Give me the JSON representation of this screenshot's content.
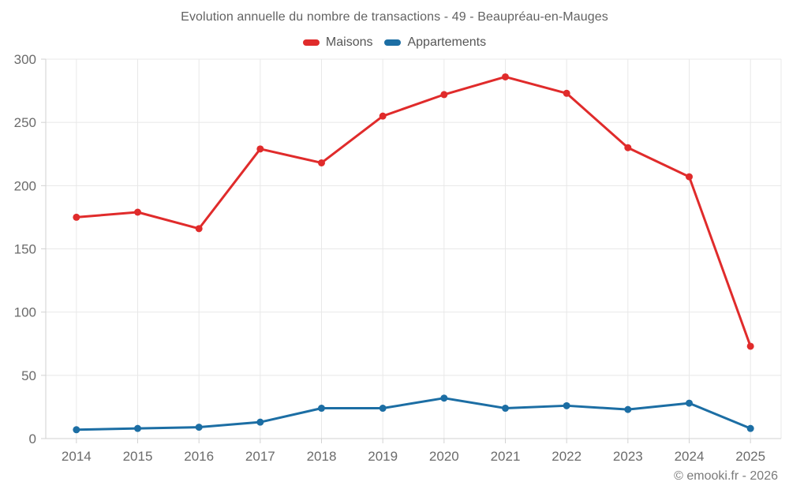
{
  "header": {
    "title": "Evolution annuelle du nombre de transactions - 49 - Beaupréau-en-Mauges"
  },
  "legend": {
    "items": [
      {
        "id": "maisons",
        "label": "Maisons",
        "color": "#e02b2b"
      },
      {
        "id": "appartements",
        "label": "Appartements",
        "color": "#1c6ea4"
      }
    ]
  },
  "footer": {
    "copyright": "© emooki.fr - 2026"
  },
  "chart_data": {
    "type": "line",
    "title": "Evolution annuelle du nombre de transactions - 49 - Beaupréau-en-Mauges",
    "categories": [
      "2014",
      "2015",
      "2016",
      "2017",
      "2018",
      "2019",
      "2020",
      "2021",
      "2022",
      "2023",
      "2024",
      "2025"
    ],
    "series": [
      {
        "name": "Maisons",
        "color": "#e02b2b",
        "values": [
          175,
          179,
          166,
          229,
          218,
          255,
          272,
          286,
          273,
          230,
          207,
          73
        ]
      },
      {
        "name": "Appartements",
        "color": "#1c6ea4",
        "values": [
          7,
          8,
          9,
          13,
          24,
          24,
          32,
          24,
          26,
          23,
          28,
          8
        ]
      }
    ],
    "xlabel": "",
    "ylabel": "",
    "ylim": [
      0,
      300
    ],
    "yticks": [
      0,
      50,
      100,
      150,
      200,
      250,
      300
    ],
    "grid": true,
    "legend_position": "top",
    "styles": {
      "grid_color": "#e8e8e8",
      "axis_color": "#d2d2d2",
      "tick_label_color": "#6b6b6b",
      "point_radius": 4.5,
      "line_width": 3
    }
  }
}
